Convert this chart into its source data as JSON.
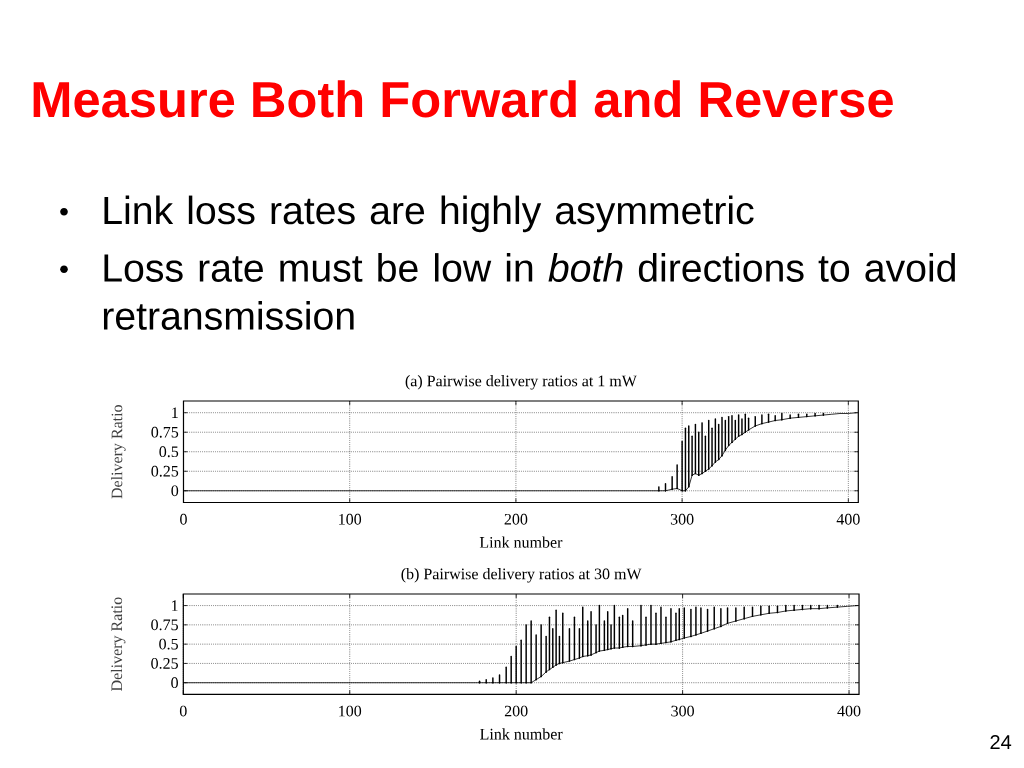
{
  "chart_data": [
    {
      "type": "other",
      "title": "Measure Both Forward and Reverse",
      "annotations": [
        "Link loss rates are highly asymmetric",
        "Loss rate must be low in *both* directions to avoid retransmission",
        "24"
      ]
    },
    {
      "type": "line",
      "title": "(a) Pairwise delivery ratios at 1 mW",
      "xlabel": "Link number",
      "ylabel": "Delivery Ratio",
      "color": "#000000",
      "marker": "none",
      "line_style": "solid",
      "grid": true,
      "x": [
        0,
        100,
        200,
        280,
        286,
        290,
        294,
        297,
        300,
        302,
        304,
        306,
        308,
        310,
        312,
        314,
        316,
        318,
        320,
        322,
        324,
        326,
        328,
        330,
        332,
        334,
        336,
        338,
        340,
        344,
        348,
        352,
        356,
        360,
        365,
        370,
        375,
        380,
        385,
        390,
        395,
        400,
        405
      ],
      "values": [
        0,
        0,
        0,
        0,
        0,
        0,
        0.02,
        0.03,
        0,
        0,
        0.05,
        0.2,
        0.22,
        0.2,
        0.22,
        0.25,
        0.28,
        0.32,
        0.37,
        0.4,
        0.45,
        0.52,
        0.58,
        0.62,
        0.66,
        0.7,
        0.72,
        0.75,
        0.78,
        0.83,
        0.86,
        0.88,
        0.9,
        0.91,
        0.93,
        0.94,
        0.95,
        0.96,
        0.97,
        0.98,
        0.99,
        0.99,
        1
      ],
      "errors": [
        null,
        null,
        null,
        null,
        [
          0,
          0.05
        ],
        [
          0,
          0.09
        ],
        [
          0.02,
          0.18
        ],
        [
          0.03,
          0.33
        ],
        [
          0,
          0.63
        ],
        [
          0,
          0.8
        ],
        [
          0.05,
          0.83
        ],
        [
          0.2,
          0.7
        ],
        [
          0.22,
          0.85
        ],
        [
          0.2,
          0.75
        ],
        [
          0.22,
          0.87
        ],
        [
          0.25,
          0.7
        ],
        [
          0.28,
          0.9
        ],
        [
          0.32,
          0.8
        ],
        [
          0.37,
          0.92
        ],
        [
          0.4,
          0.85
        ],
        [
          0.45,
          0.94
        ],
        [
          0.52,
          0.9
        ],
        [
          0.58,
          0.95
        ],
        [
          0.62,
          0.96
        ],
        [
          0.66,
          0.9
        ],
        [
          0.7,
          0.97
        ],
        [
          0.72,
          0.92
        ],
        [
          0.75,
          0.98
        ],
        [
          0.78,
          0.93
        ],
        [
          0.83,
          0.95
        ],
        [
          0.86,
          0.97
        ],
        [
          0.88,
          0.98
        ],
        [
          0.9,
          0.96
        ],
        [
          0.91,
          0.99
        ],
        [
          0.93,
          0.97
        ],
        [
          0.94,
          0.98
        ],
        [
          0.95,
          0.98
        ],
        [
          0.96,
          0.99
        ],
        [
          0.97,
          0.99
        ],
        null,
        null,
        null,
        null
      ],
      "xlim": [
        0,
        406
      ],
      "ylim": [
        -0.15,
        1.15
      ],
      "xticks": [
        0,
        100,
        200,
        300,
        400
      ],
      "yticks": [
        0,
        0.25,
        0.5,
        0.75,
        1
      ]
    },
    {
      "type": "line",
      "title": "(b) Pairwise delivery ratios at 30 mW",
      "xlabel": "Link number",
      "ylabel": "Delivery Ratio",
      "color": "#000000",
      "marker": "none",
      "line_style": "solid",
      "grid": true,
      "x": [
        0,
        100,
        170,
        178,
        182,
        186,
        190,
        194,
        197,
        200,
        203,
        206,
        209,
        212,
        215,
        218,
        220,
        222,
        224,
        226,
        228,
        232,
        235,
        238,
        240,
        243,
        245,
        248,
        250,
        253,
        255,
        257,
        259,
        262,
        264,
        267,
        270,
        275,
        278,
        281,
        284,
        287,
        290,
        293,
        296,
        298,
        301,
        305,
        308,
        311,
        315,
        319,
        323,
        327,
        332,
        337,
        342,
        347,
        352,
        357,
        362,
        367,
        372,
        377,
        382,
        387,
        393,
        399,
        405
      ],
      "values": [
        0,
        0,
        0,
        0,
        0,
        0,
        0,
        0,
        0,
        0,
        0,
        0,
        0,
        0.04,
        0.08,
        0.14,
        0.17,
        0.2,
        0.23,
        0.25,
        0.26,
        0.28,
        0.3,
        0.32,
        0.34,
        0.35,
        0.36,
        0.39,
        0.41,
        0.42,
        0.43,
        0.44,
        0.45,
        0.45,
        0.46,
        0.47,
        0.47,
        0.48,
        0.49,
        0.5,
        0.5,
        0.51,
        0.52,
        0.53,
        0.55,
        0.56,
        0.58,
        0.6,
        0.62,
        0.64,
        0.67,
        0.7,
        0.73,
        0.77,
        0.8,
        0.83,
        0.86,
        0.88,
        0.9,
        0.91,
        0.93,
        0.94,
        0.95,
        0.96,
        0.96,
        0.97,
        0.98,
        0.99,
        1
      ],
      "errors": [
        null,
        null,
        null,
        [
          0,
          0.02
        ],
        [
          0,
          0.04
        ],
        [
          0,
          0.06
        ],
        [
          0,
          0.1
        ],
        [
          0,
          0.2
        ],
        [
          0,
          0.34
        ],
        [
          0,
          0.47
        ],
        [
          0,
          0.55
        ],
        [
          0,
          0.75
        ],
        [
          0,
          0.8
        ],
        [
          0.04,
          0.62
        ],
        [
          0.08,
          0.75
        ],
        [
          0.14,
          0.6
        ],
        [
          0.17,
          0.85
        ],
        [
          0.2,
          0.7
        ],
        [
          0.23,
          0.94
        ],
        [
          0.25,
          0.6
        ],
        [
          0.26,
          0.9
        ],
        [
          0.28,
          0.7
        ],
        [
          0.3,
          0.85
        ],
        [
          0.32,
          0.7
        ],
        [
          0.34,
          0.98
        ],
        [
          0.35,
          0.8
        ],
        [
          0.36,
          0.92
        ],
        [
          0.39,
          0.75
        ],
        [
          0.41,
          1
        ],
        [
          0.42,
          0.8
        ],
        [
          0.43,
          0.92
        ],
        [
          0.44,
          0.75
        ],
        [
          0.45,
          1
        ],
        [
          0.45,
          0.85
        ],
        [
          0.46,
          0.87
        ],
        [
          0.47,
          0.96
        ],
        [
          0.47,
          0.8
        ],
        [
          0.48,
          1
        ],
        [
          0.49,
          0.85
        ],
        [
          0.5,
          1
        ],
        [
          0.5,
          0.9
        ],
        [
          0.51,
          0.98
        ],
        [
          0.52,
          0.85
        ],
        [
          0.53,
          0.96
        ],
        [
          0.55,
          0.9
        ],
        [
          0.56,
          0.96
        ],
        [
          0.58,
          0.97
        ],
        [
          0.6,
          0.95
        ],
        [
          0.62,
          0.98
        ],
        [
          0.64,
          0.97
        ],
        [
          0.67,
          0.95
        ],
        [
          0.7,
          0.98
        ],
        [
          0.73,
          0.96
        ],
        [
          0.77,
          0.97
        ],
        [
          0.8,
          0.97
        ],
        [
          0.83,
          0.98
        ],
        [
          0.86,
          0.98
        ],
        [
          0.88,
          0.99
        ],
        [
          0.9,
          0.99
        ],
        [
          0.91,
          0.99
        ],
        [
          0.93,
          1
        ],
        [
          0.94,
          1
        ],
        [
          0.95,
          1
        ],
        [
          0.96,
          1
        ],
        [
          0.96,
          1
        ],
        [
          0.97,
          1
        ],
        [
          0.98,
          1
        ],
        null,
        null
      ],
      "xlim": [
        0,
        406
      ],
      "ylim": [
        -0.15,
        1.15
      ],
      "xticks": [
        0,
        100,
        200,
        300,
        400
      ],
      "yticks": [
        0,
        0.25,
        0.5,
        0.75,
        1
      ]
    }
  ]
}
